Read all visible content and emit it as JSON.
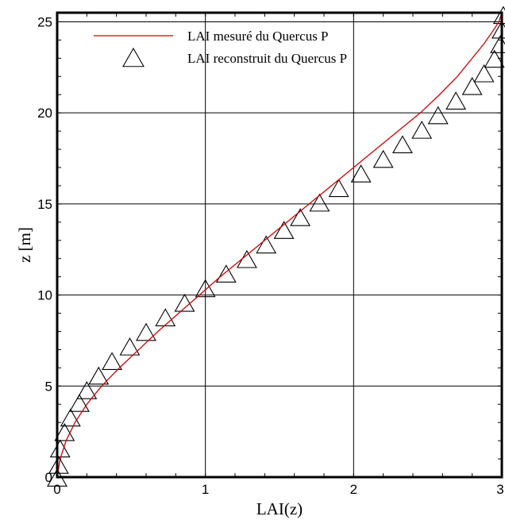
{
  "chart_data": {
    "type": "line",
    "xlabel": "LAI(z)",
    "ylabel": "z [m]",
    "xlim": [
      0,
      3
    ],
    "ylim": [
      0,
      25.5
    ],
    "x_ticks": [
      "0",
      "1",
      "2",
      "3"
    ],
    "y_ticks": [
      "0",
      "5",
      "10",
      "15",
      "20",
      "25"
    ],
    "grid": true,
    "legend_position": "top-left",
    "series": [
      {
        "name": "LAI mesuré du Quercus P",
        "style": "line",
        "color": "#cc0000",
        "x": [
          0,
          0.02,
          0.06,
          0.12,
          0.2,
          0.3,
          0.42,
          0.55,
          0.68,
          0.82,
          0.96,
          1.1,
          1.25,
          1.4,
          1.55,
          1.7,
          1.85,
          2.0,
          2.15,
          2.3,
          2.45,
          2.58,
          2.7,
          2.8,
          2.88,
          2.94,
          2.98,
          3.0
        ],
        "y": [
          0,
          1.0,
          2.0,
          3.0,
          4.0,
          5.0,
          6.0,
          7.0,
          8.0,
          9.0,
          10.0,
          11.0,
          12.0,
          13.0,
          14.0,
          15.0,
          16.0,
          17.0,
          18.0,
          19.0,
          20.0,
          21.0,
          22.0,
          23.0,
          23.8,
          24.5,
          25.0,
          25.5
        ]
      },
      {
        "name": "LAI reconstruit du Quercus P",
        "style": "triangle-markers",
        "color": "#000000",
        "x": [
          0.0,
          0.01,
          0.02,
          0.05,
          0.09,
          0.15,
          0.2,
          0.28,
          0.37,
          0.49,
          0.6,
          0.73,
          0.86,
          1.0,
          1.14,
          1.28,
          1.41,
          1.53,
          1.64,
          1.77,
          1.9,
          2.05,
          2.2,
          2.33,
          2.46,
          2.57,
          2.69,
          2.8,
          2.88,
          2.95,
          2.99,
          3.0,
          3.01
        ],
        "y": [
          -0.1,
          0.6,
          1.5,
          2.4,
          3.2,
          4.0,
          4.7,
          5.5,
          6.3,
          7.1,
          7.9,
          8.7,
          9.5,
          10.3,
          11.1,
          11.9,
          12.7,
          13.5,
          14.2,
          15.0,
          15.8,
          16.6,
          17.4,
          18.2,
          19.0,
          19.8,
          20.6,
          21.4,
          22.1,
          22.9,
          23.7,
          24.5,
          25.3
        ]
      }
    ]
  }
}
